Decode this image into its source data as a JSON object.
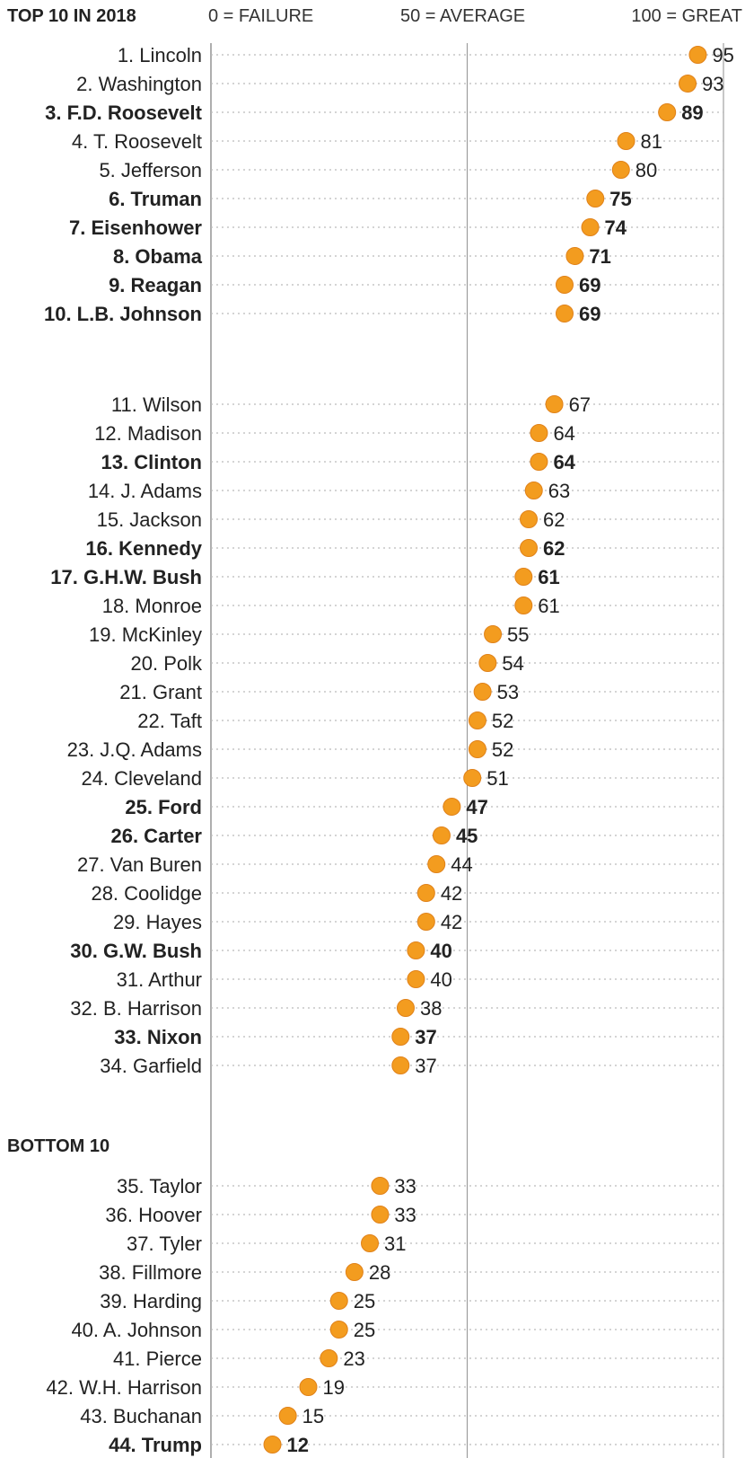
{
  "header": {
    "top_title": "TOP 10 IN 2018",
    "scale_labels": [
      "0 = FAILURE",
      "50 = AVERAGE",
      "100 = GREAT"
    ],
    "bottom_title": "BOTTOM 10"
  },
  "colors": {
    "dot": "#f39c1f",
    "dot_edge": "#e0821a",
    "grid": "#bbbbbb",
    "axis": "#999999"
  },
  "chart_data": {
    "type": "scatter",
    "title": "TOP 10 IN 2018",
    "scale": {
      "min": 0,
      "max": 100,
      "tick_values": [
        0,
        50,
        100
      ],
      "tick_labels": [
        "0 = FAILURE",
        "50 = AVERAGE",
        "100 = GREAT"
      ]
    },
    "groups": [
      {
        "label": "TOP 10 IN 2018",
        "items": [
          {
            "name": "1. Lincoln",
            "value": 95,
            "bold": false
          },
          {
            "name": "2. Washington",
            "value": 93,
            "bold": false
          },
          {
            "name": "3. F.D. Roosevelt",
            "value": 89,
            "bold": true
          },
          {
            "name": "4. T. Roosevelt",
            "value": 81,
            "bold": false
          },
          {
            "name": "5. Jefferson",
            "value": 80,
            "bold": false
          },
          {
            "name": "6. Truman",
            "value": 75,
            "bold": true
          },
          {
            "name": "7. Eisenhower",
            "value": 74,
            "bold": true
          },
          {
            "name": "8. Obama",
            "value": 71,
            "bold": true
          },
          {
            "name": "9. Reagan",
            "value": 69,
            "bold": true
          },
          {
            "name": "10. L.B. Johnson",
            "value": 69,
            "bold": true
          }
        ]
      },
      {
        "label": "",
        "items": [
          {
            "name": "11. Wilson",
            "value": 67,
            "bold": false
          },
          {
            "name": "12. Madison",
            "value": 64,
            "bold": false
          },
          {
            "name": "13. Clinton",
            "value": 64,
            "bold": true
          },
          {
            "name": "14. J. Adams",
            "value": 63,
            "bold": false
          },
          {
            "name": "15. Jackson",
            "value": 62,
            "bold": false
          },
          {
            "name": "16. Kennedy",
            "value": 62,
            "bold": true
          },
          {
            "name": "17. G.H.W. Bush",
            "value": 61,
            "bold": true
          },
          {
            "name": "18. Monroe",
            "value": 61,
            "bold": false
          },
          {
            "name": "19. McKinley",
            "value": 55,
            "bold": false
          },
          {
            "name": "20. Polk",
            "value": 54,
            "bold": false
          },
          {
            "name": "21. Grant",
            "value": 53,
            "bold": false
          },
          {
            "name": "22. Taft",
            "value": 52,
            "bold": false
          },
          {
            "name": "23. J.Q. Adams",
            "value": 52,
            "bold": false
          },
          {
            "name": "24. Cleveland",
            "value": 51,
            "bold": false
          },
          {
            "name": "25. Ford",
            "value": 47,
            "bold": true
          },
          {
            "name": "26. Carter",
            "value": 45,
            "bold": true
          },
          {
            "name": "27. Van Buren",
            "value": 44,
            "bold": false
          },
          {
            "name": "28. Coolidge",
            "value": 42,
            "bold": false
          },
          {
            "name": "29. Hayes",
            "value": 42,
            "bold": false
          },
          {
            "name": "30. G.W. Bush",
            "value": 40,
            "bold": true
          },
          {
            "name": "31. Arthur",
            "value": 40,
            "bold": false
          },
          {
            "name": "32. B. Harrison",
            "value": 38,
            "bold": false
          },
          {
            "name": "33. Nixon",
            "value": 37,
            "bold": true
          },
          {
            "name": "34. Garfield",
            "value": 37,
            "bold": false
          }
        ]
      },
      {
        "label": "BOTTOM 10",
        "items": [
          {
            "name": "35. Taylor",
            "value": 33,
            "bold": false
          },
          {
            "name": "36. Hoover",
            "value": 33,
            "bold": false
          },
          {
            "name": "37. Tyler",
            "value": 31,
            "bold": false
          },
          {
            "name": "38. Fillmore",
            "value": 28,
            "bold": false
          },
          {
            "name": "39. Harding",
            "value": 25,
            "bold": false
          },
          {
            "name": "40. A. Johnson",
            "value": 25,
            "bold": false
          },
          {
            "name": "41. Pierce",
            "value": 23,
            "bold": false
          },
          {
            "name": "42. W.H. Harrison",
            "value": 19,
            "bold": false
          },
          {
            "name": "43. Buchanan",
            "value": 15,
            "bold": false
          },
          {
            "name": "44. Trump",
            "value": 12,
            "bold": true
          }
        ]
      }
    ]
  }
}
